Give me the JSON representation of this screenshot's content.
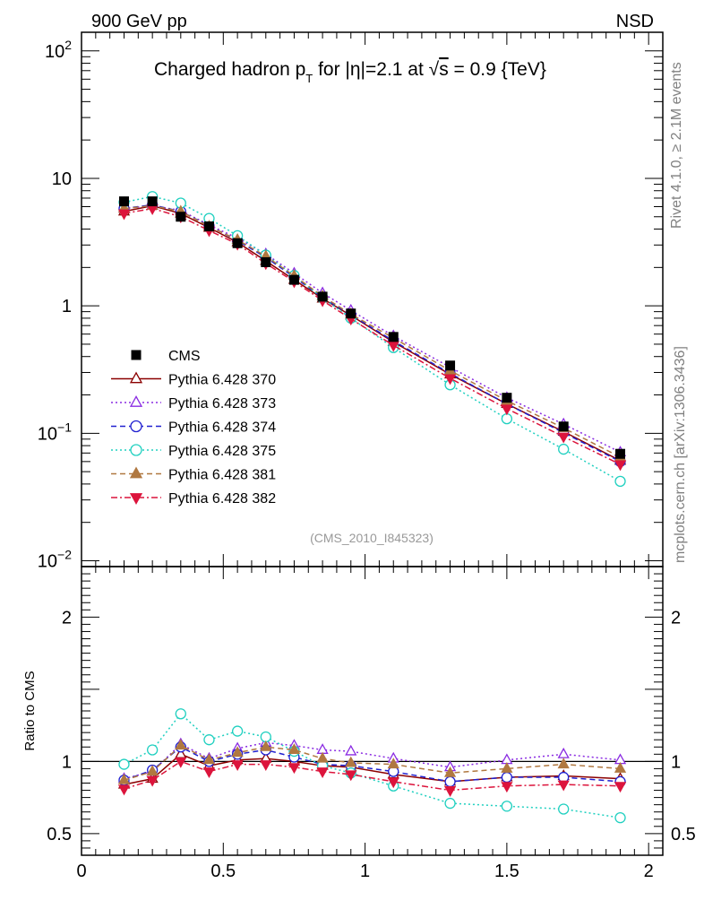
{
  "header": {
    "left_label": "900 GeV pp",
    "right_label": "NSD",
    "side_label_top": "Rivet 4.1.0, ≥ 2.1M events",
    "side_label_bottom": "mcplots.cern.ch [arXiv:1306.3436]"
  },
  "chart_data": {
    "type": "line",
    "title": "Charged hadron p_T for |η|=2.1 at √s = 0.9 {TeV}",
    "title_parts": {
      "prefix": "Charged hadron p",
      "sub": "T",
      "middle": " for |η|=2.1 at √",
      "overline": "s",
      "suffix": " = 0.9 {TeV}"
    },
    "analysis_label": "(CMS_2010_I845323)",
    "xlabel": "",
    "ylabel": "",
    "xlim": [
      0,
      2.05
    ],
    "ylim": [
      0.009,
      140
    ],
    "yscale": "log",
    "x_ticks": [
      "0",
      "0.5",
      "1",
      "1.5",
      "2"
    ],
    "y_ticks": [
      "10^-2",
      "10^-1",
      "1",
      "10",
      "10^2"
    ],
    "x": [
      0.15,
      0.25,
      0.35,
      0.45,
      0.55,
      0.65,
      0.75,
      0.85,
      0.95,
      1.1,
      1.3,
      1.5,
      1.7,
      1.9
    ],
    "series": [
      {
        "name": "CMS",
        "color": "#000000",
        "marker": "square-filled",
        "line": "none",
        "values": [
          6.6,
          6.6,
          5.0,
          4.2,
          3.1,
          2.2,
          1.6,
          1.18,
          0.87,
          0.57,
          0.34,
          0.19,
          0.113,
          0.069
        ]
      },
      {
        "name": "Pythia 6.428 370",
        "color": "#8b0000",
        "marker": "triangle-up-open",
        "line": "solid",
        "values": [
          5.5,
          6.1,
          5.3,
          4.1,
          3.15,
          2.25,
          1.6,
          1.14,
          0.84,
          0.52,
          0.29,
          0.17,
          0.103,
          0.061
        ]
      },
      {
        "name": "Pythia 6.428 373",
        "color": "#8a2be2",
        "marker": "triangle-up-open",
        "line": "dotted",
        "values": [
          5.8,
          6.1,
          5.6,
          4.3,
          3.4,
          2.55,
          1.8,
          1.26,
          0.92,
          0.58,
          0.33,
          0.19,
          0.118,
          0.071
        ]
      },
      {
        "name": "Pythia 6.428 374",
        "color": "#2020d0",
        "marker": "circle-open",
        "line": "dashed",
        "values": [
          5.8,
          6.2,
          5.5,
          4.25,
          3.25,
          2.4,
          1.68,
          1.16,
          0.85,
          0.53,
          0.295,
          0.17,
          0.101,
          0.06
        ]
      },
      {
        "name": "Pythia 6.428 375",
        "color": "#20d0c0",
        "marker": "circle-open",
        "line": "dotted",
        "values": [
          6.5,
          7.2,
          6.4,
          4.85,
          3.55,
          2.5,
          1.73,
          1.15,
          0.8,
          0.47,
          0.24,
          0.13,
          0.075,
          0.042
        ]
      },
      {
        "name": "Pythia 6.428 381",
        "color": "#b07840",
        "marker": "triangle-up-filled",
        "line": "dashed",
        "values": [
          5.8,
          6.1,
          5.5,
          4.2,
          3.3,
          2.45,
          1.72,
          1.19,
          0.86,
          0.56,
          0.31,
          0.18,
          0.11,
          0.065
        ]
      },
      {
        "name": "Pythia 6.428 382",
        "color": "#dc143c",
        "marker": "triangle-down-filled",
        "line": "dashdot",
        "values": [
          5.3,
          5.8,
          5.0,
          3.9,
          3.05,
          2.15,
          1.55,
          1.1,
          0.79,
          0.49,
          0.27,
          0.156,
          0.094,
          0.057
        ]
      }
    ],
    "ratio": {
      "ylabel": "Ratio to CMS",
      "ylim": [
        0.35,
        2.35
      ],
      "y_ticks": [
        "0.5",
        "1",
        "2"
      ],
      "series": [
        {
          "name": "Pythia 6.428 370",
          "values": [
            0.84,
            0.88,
            1.05,
            0.97,
            1.01,
            1.02,
            1.0,
            0.97,
            0.96,
            0.91,
            0.86,
            0.89,
            0.9,
            0.88
          ]
        },
        {
          "name": "Pythia 6.428 373",
          "values": [
            0.88,
            0.93,
            1.12,
            1.02,
            1.09,
            1.13,
            1.11,
            1.08,
            1.07,
            1.02,
            0.96,
            1.01,
            1.05,
            1.01
          ]
        },
        {
          "name": "Pythia 6.428 374",
          "values": [
            0.87,
            0.94,
            1.1,
            1.0,
            1.05,
            1.08,
            1.03,
            0.98,
            0.97,
            0.93,
            0.86,
            0.89,
            0.89,
            0.86
          ]
        },
        {
          "name": "Pythia 6.428 375",
          "values": [
            0.98,
            1.08,
            1.33,
            1.15,
            1.21,
            1.17,
            1.07,
            0.97,
            0.92,
            0.83,
            0.71,
            0.69,
            0.67,
            0.61
          ]
        },
        {
          "name": "Pythia 6.428 381",
          "values": [
            0.87,
            0.93,
            1.11,
            1.01,
            1.06,
            1.1,
            1.08,
            1.02,
            0.99,
            0.98,
            0.92,
            0.95,
            0.98,
            0.95
          ]
        },
        {
          "name": "Pythia 6.428 382",
          "values": [
            0.81,
            0.87,
            1.0,
            0.93,
            0.98,
            0.98,
            0.96,
            0.93,
            0.91,
            0.86,
            0.8,
            0.83,
            0.84,
            0.83
          ]
        }
      ]
    }
  }
}
